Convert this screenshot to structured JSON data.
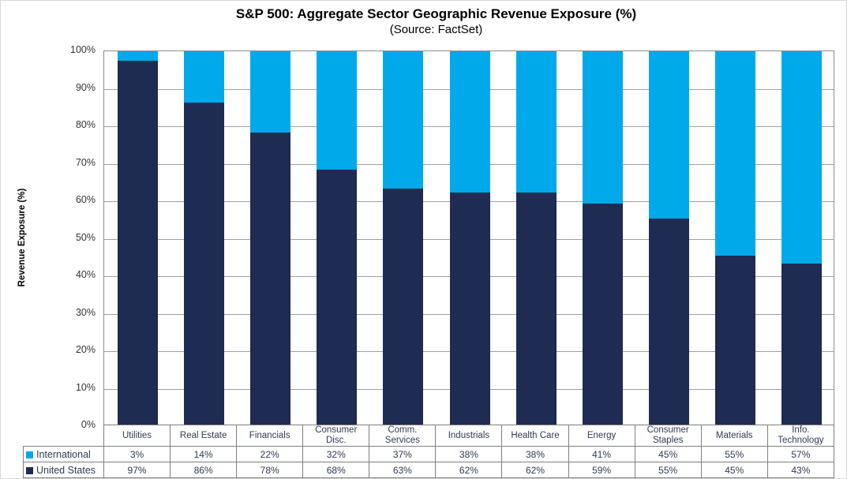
{
  "chart_data": {
    "type": "bar",
    "stacked": true,
    "title": "S&P 500: Aggregate Sector Geographic Revenue Exposure (%)",
    "subtitle": "(Source: FactSet)",
    "ylabel": "Revenue Exposure (%)",
    "xlabel": "",
    "ylim": [
      0,
      100
    ],
    "ytick_step": 10,
    "yticks": [
      "0%",
      "10%",
      "20%",
      "30%",
      "40%",
      "50%",
      "60%",
      "70%",
      "80%",
      "90%",
      "100%"
    ],
    "grid": true,
    "legend_position": "data-table-left",
    "categories": [
      "Utilities",
      "Real Estate",
      "Financials",
      "Consumer Disc.",
      "Comm. Services",
      "Industrials",
      "Health Care",
      "Energy",
      "Consumer Staples",
      "Materials",
      "Info. Technology"
    ],
    "series": [
      {
        "name": "International",
        "color": "#00A9E9",
        "values": [
          3,
          14,
          22,
          32,
          37,
          38,
          38,
          41,
          45,
          55,
          57
        ],
        "display_values": [
          "3%",
          "14%",
          "22%",
          "32%",
          "37%",
          "38%",
          "38%",
          "41%",
          "45%",
          "55%",
          "57%"
        ]
      },
      {
        "name": "United States",
        "color": "#1E2B52",
        "values": [
          97,
          86,
          78,
          68,
          63,
          62,
          62,
          59,
          55,
          45,
          43
        ],
        "display_values": [
          "97%",
          "86%",
          "78%",
          "68%",
          "63%",
          "62%",
          "62%",
          "59%",
          "55%",
          "45%",
          "43%"
        ]
      }
    ],
    "colors": {
      "international": "#00A9E9",
      "united_states": "#1E2B52",
      "gridline": "#A0A0A0",
      "plot_border": "#8C8C8C",
      "table_border": "#7F7F7F",
      "table_text": "#2E3B52"
    }
  }
}
